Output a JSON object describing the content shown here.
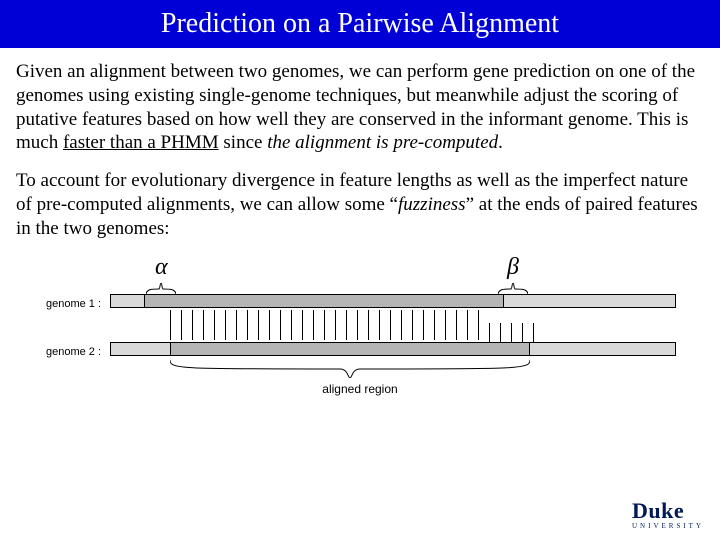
{
  "title_bar": {
    "bg": "#0000d6",
    "text": "Prediction on a Pairwise Alignment"
  },
  "paragraphs": {
    "p1_a": "Given an alignment between two genomes, we can perform gene prediction on one of the genomes using existing single-genome techniques, but meanwhile adjust the scoring of putative features based on how well they are conserved in the informant genome. This is much ",
    "p1_b": "faster than a PHMM",
    "p1_c": " since ",
    "p1_d": "the alignment is pre-computed",
    "p1_e": ".",
    "p2_a": "To account for evolutionary divergence in feature lengths as well as the imperfect nature of pre-computed alignments, we can allow some “",
    "p2_b": "fuzziness",
    "p2_c": "” at the ends of paired features in the two genomes:"
  },
  "diagram": {
    "alpha": "α",
    "beta": "β",
    "genome1_label": "genome 1 :",
    "genome2_label": "genome 2 :",
    "aligned_label": "aligned region",
    "tick_count": 34,
    "tick_spacing": 11,
    "tick_extend_after": 29,
    "colors": {
      "track_bg": "#d9d9d9",
      "track_fg": "#b5b5b5",
      "border": "#000000"
    }
  },
  "logo": {
    "main": "Duke",
    "sub": "UNIVERSITY"
  }
}
